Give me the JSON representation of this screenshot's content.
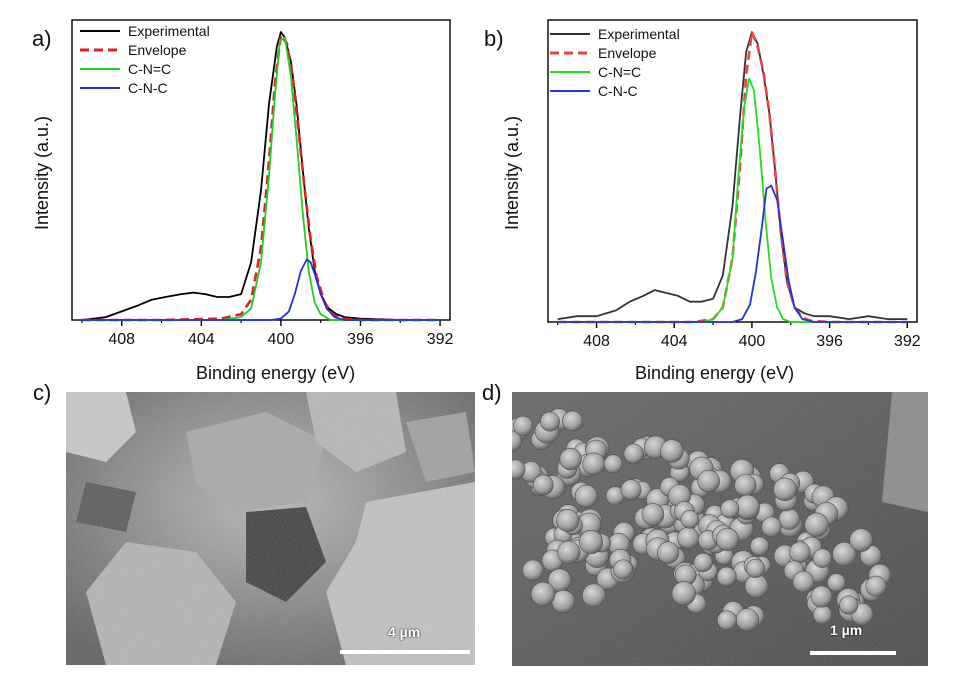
{
  "panels": {
    "a": {
      "label": "a)"
    },
    "b": {
      "label": "b)"
    },
    "c": {
      "label": "c)",
      "scale_text": "4 µm"
    },
    "d": {
      "label": "d)",
      "scale_text": "1 µm"
    }
  },
  "chart_data": [
    {
      "type": "line",
      "panel": "a",
      "xlabel": "Binding energy (eV)",
      "ylabel": "Intensity (a.u.)",
      "xlim": [
        410.5,
        391.5
      ],
      "xticks": [
        408,
        404,
        400,
        396,
        392
      ],
      "x_reversed": true,
      "legend_position": "top-left",
      "series": [
        {
          "name": "Experimental",
          "color": "#000000",
          "style": "solid",
          "x": [
            410,
            408.8,
            408,
            407.2,
            406.5,
            405.8,
            405,
            404.4,
            403.8,
            403.2,
            402.6,
            402,
            401.5,
            401,
            400.6,
            400.2,
            400,
            399.8,
            399.5,
            399.2,
            398.9,
            398.6,
            398.3,
            398,
            397.6,
            397.2,
            396.8,
            396,
            394,
            392
          ],
          "y": [
            0.0,
            0.01,
            0.03,
            0.05,
            0.07,
            0.08,
            0.09,
            0.095,
            0.09,
            0.08,
            0.08,
            0.09,
            0.2,
            0.45,
            0.75,
            0.95,
            1.0,
            0.98,
            0.9,
            0.74,
            0.52,
            0.32,
            0.17,
            0.09,
            0.04,
            0.02,
            0.01,
            0.005,
            0.0,
            0.0
          ]
        },
        {
          "name": "Envelope",
          "color": "#e02020",
          "style": "dashed",
          "x": [
            410,
            406,
            403,
            402,
            401.5,
            401,
            400.6,
            400.3,
            400,
            399.7,
            399.4,
            399.1,
            398.8,
            398.5,
            398.2,
            397.8,
            397.4,
            397,
            396,
            392
          ],
          "y": [
            0.0,
            0.0,
            0.005,
            0.02,
            0.07,
            0.25,
            0.55,
            0.82,
            0.99,
            0.96,
            0.84,
            0.65,
            0.45,
            0.28,
            0.15,
            0.06,
            0.02,
            0.005,
            0.0,
            0.0
          ]
        },
        {
          "name": "C-N=C",
          "color": "#22cc22",
          "style": "solid",
          "x": [
            410,
            403,
            402,
            401.5,
            401,
            400.6,
            400.3,
            400.05,
            399.8,
            399.5,
            399.2,
            398.9,
            398.6,
            398.3,
            398,
            397.5,
            397,
            392
          ],
          "y": [
            0.0,
            0.0,
            0.01,
            0.04,
            0.2,
            0.5,
            0.78,
            0.97,
            0.98,
            0.85,
            0.62,
            0.37,
            0.17,
            0.06,
            0.02,
            0.0,
            0.0,
            0.0
          ]
        },
        {
          "name": "C-N-C",
          "color": "#2233dd",
          "style": "solid",
          "x": [
            410,
            400.5,
            400,
            399.6,
            399.3,
            399,
            398.7,
            398.5,
            398.3,
            398,
            397.7,
            397.3,
            396.8,
            392
          ],
          "y": [
            0.0,
            0.0,
            0.005,
            0.03,
            0.09,
            0.17,
            0.21,
            0.2,
            0.16,
            0.09,
            0.04,
            0.01,
            0.0,
            0.0
          ]
        }
      ]
    },
    {
      "type": "line",
      "panel": "b",
      "xlabel": "Binding energy (eV)",
      "ylabel": "Intensity (a.u.)",
      "xlim": [
        410.5,
        391.5
      ],
      "xticks": [
        408,
        404,
        400,
        396,
        392
      ],
      "x_reversed": true,
      "legend_position": "top-left",
      "series": [
        {
          "name": "Experimental",
          "color": "#333333",
          "style": "solid",
          "x": [
            410,
            409,
            408,
            407,
            406.3,
            405.6,
            405,
            404.4,
            403.8,
            403.2,
            402.6,
            402,
            401.5,
            401,
            400.6,
            400.3,
            400,
            399.7,
            399.4,
            399.1,
            398.8,
            398.5,
            398.2,
            397.8,
            397.3,
            396.8,
            396,
            395,
            394,
            393,
            392
          ],
          "y": [
            0.01,
            0.02,
            0.02,
            0.04,
            0.07,
            0.09,
            0.11,
            0.1,
            0.09,
            0.07,
            0.07,
            0.08,
            0.16,
            0.4,
            0.72,
            0.93,
            1.0,
            0.96,
            0.85,
            0.72,
            0.52,
            0.3,
            0.14,
            0.05,
            0.03,
            0.02,
            0.02,
            0.01,
            0.02,
            0.01,
            0.01
          ]
        },
        {
          "name": "Envelope",
          "color": "#ee4040",
          "style": "dashed",
          "x": [
            410,
            403,
            402,
            401.5,
            401,
            400.6,
            400.3,
            400,
            399.7,
            399.4,
            399.1,
            398.8,
            398.5,
            398.2,
            397.8,
            397.4,
            397,
            396,
            392
          ],
          "y": [
            0.0,
            0.0,
            0.01,
            0.05,
            0.22,
            0.55,
            0.85,
            1.0,
            0.95,
            0.86,
            0.72,
            0.52,
            0.3,
            0.14,
            0.05,
            0.015,
            0.005,
            0.0,
            0.0
          ]
        },
        {
          "name": "C-N=C",
          "color": "#22dd22",
          "style": "solid",
          "x": [
            410,
            402.5,
            402,
            401.5,
            401,
            400.7,
            400.4,
            400.15,
            399.9,
            399.6,
            399.3,
            399,
            398.7,
            398.4,
            398,
            397.5,
            392
          ],
          "y": [
            0.0,
            0.0,
            0.01,
            0.05,
            0.22,
            0.5,
            0.74,
            0.84,
            0.8,
            0.6,
            0.35,
            0.15,
            0.05,
            0.01,
            0.0,
            0.0,
            0.0
          ]
        },
        {
          "name": "C-N-C",
          "color": "#2233dd",
          "style": "solid",
          "x": [
            410,
            401,
            400.5,
            400.1,
            399.8,
            399.5,
            399.25,
            399,
            398.7,
            398.4,
            398.1,
            397.8,
            397.4,
            396.8,
            392
          ],
          "y": [
            0.0,
            0.0,
            0.01,
            0.06,
            0.17,
            0.32,
            0.46,
            0.47,
            0.42,
            0.28,
            0.14,
            0.05,
            0.01,
            0.0,
            0.0
          ]
        }
      ]
    }
  ]
}
